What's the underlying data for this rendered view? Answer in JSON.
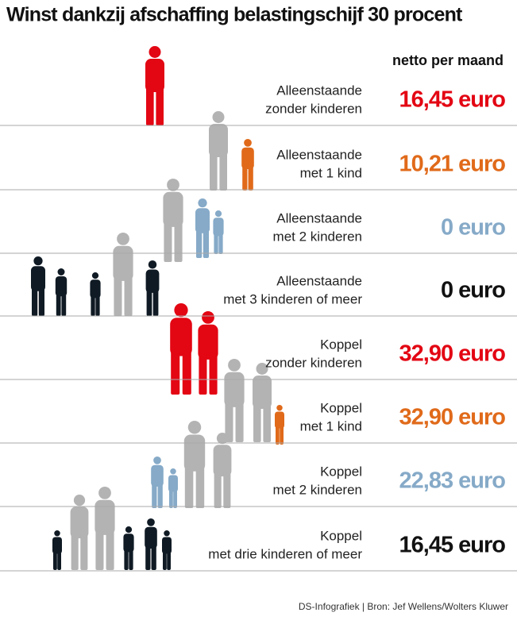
{
  "header": {
    "title": "Winst dankzij afschaffing belastingschijf 30 procent",
    "column": "netto per maand"
  },
  "rows": [
    {
      "label": [
        "Alleenstaande",
        "zonder kinderen"
      ],
      "amount": "16,45 euro",
      "color": "#e30613"
    },
    {
      "label": [
        "Alleenstaande",
        "met 1 kind"
      ],
      "amount": "10,21 euro",
      "color": "#e06a1a"
    },
    {
      "label": [
        "Alleenstaande",
        "met 2 kinderen"
      ],
      "amount": "0 euro",
      "color": "#86aac8"
    },
    {
      "label": [
        "Alleenstaande",
        "met 3 kinderen of meer"
      ],
      "amount": "0 euro",
      "color": "#111111"
    },
    {
      "label": [
        "Koppel",
        "zonder kinderen"
      ],
      "amount": "32,90 euro",
      "color": "#e30613"
    },
    {
      "label": [
        "Koppel",
        "met 1 kind"
      ],
      "amount": "32,90 euro",
      "color": "#e06a1a"
    },
    {
      "label": [
        "Koppel",
        "met 2 kinderen"
      ],
      "amount": "22,83 euro",
      "color": "#86aac8"
    },
    {
      "label": [
        "Koppel",
        "met drie kinderen of meer"
      ],
      "amount": "16,45 euro",
      "color": "#111111"
    }
  ],
  "source": "DS-Infografiek | Bron: Jef Wellens/Wolters Kluwer"
}
